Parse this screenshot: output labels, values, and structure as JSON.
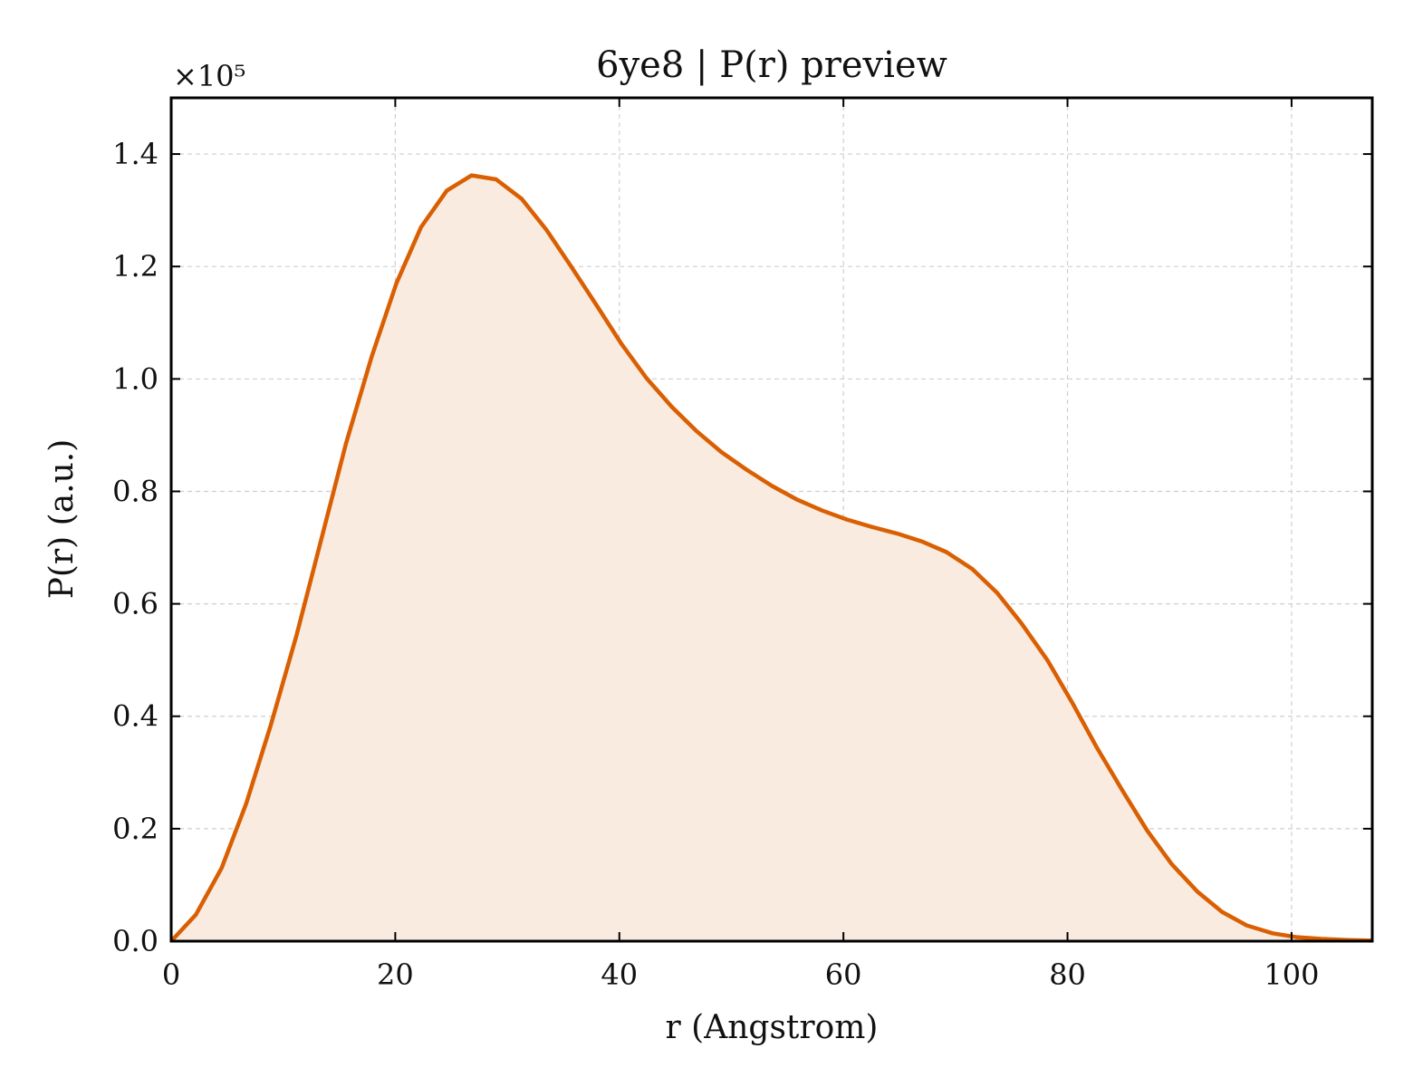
{
  "chart_data": {
    "type": "area",
    "title": "6ye8 | P(r) preview",
    "xlabel": "r (Angstrom)",
    "ylabel": "P(r) (a.u.)",
    "y_offset_label": "×10⁵",
    "xlim": [
      0,
      107.2
    ],
    "ylim": [
      0,
      1.5
    ],
    "xticks": [
      0,
      20,
      40,
      60,
      80,
      100
    ],
    "yticks": [
      0.0,
      0.2,
      0.4,
      0.6,
      0.8,
      1.0,
      1.2,
      1.4
    ],
    "xtick_labels": [
      "0",
      "20",
      "40",
      "60",
      "80",
      "100"
    ],
    "ytick_labels": [
      "0.0",
      "0.2",
      "0.4",
      "0.6",
      "0.8",
      "1.0",
      "1.2",
      "1.4"
    ],
    "grid": true,
    "line_color": "#d95f02",
    "fill_color": "#f9ebe0",
    "series": [
      {
        "x": [
          0,
          2.2,
          4.5,
          6.7,
          8.9,
          11.2,
          13.4,
          15.6,
          17.9,
          20.1,
          22.3,
          24.6,
          26.8,
          29.0,
          31.3,
          33.5,
          35.7,
          38.0,
          40.2,
          42.4,
          44.7,
          46.9,
          49.1,
          51.4,
          53.6,
          55.8,
          58.1,
          60.3,
          62.5,
          64.8,
          67.0,
          69.2,
          71.5,
          73.7,
          75.9,
          78.2,
          80.4,
          82.6,
          84.9,
          87.1,
          89.3,
          91.6,
          93.8,
          96.0,
          98.3,
          100.5,
          102.7,
          105.0,
          107.2
        ],
        "y": [
          0.0,
          0.047,
          0.13,
          0.245,
          0.385,
          0.545,
          0.715,
          0.885,
          1.04,
          1.17,
          1.27,
          1.335,
          1.362,
          1.355,
          1.32,
          1.265,
          1.2,
          1.13,
          1.062,
          1.002,
          0.95,
          0.907,
          0.87,
          0.838,
          0.81,
          0.786,
          0.766,
          0.75,
          0.737,
          0.725,
          0.711,
          0.692,
          0.662,
          0.62,
          0.565,
          0.5,
          0.425,
          0.345,
          0.268,
          0.197,
          0.137,
          0.088,
          0.052,
          0.028,
          0.014,
          0.007,
          0.004,
          0.002,
          0.001
        ]
      }
    ]
  }
}
